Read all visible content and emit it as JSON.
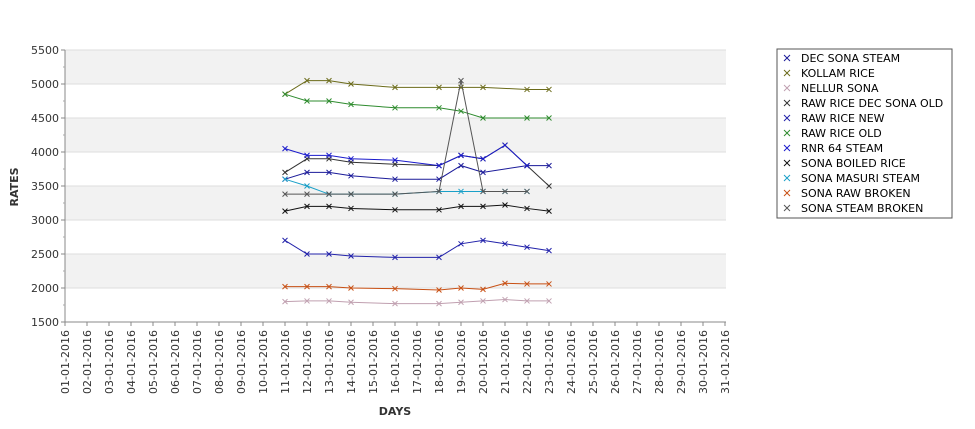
{
  "chart_data": {
    "type": "line",
    "xlabel": "DAYS",
    "ylabel": "RATES",
    "ylim": [
      1500,
      5500
    ],
    "yticks": [
      1500,
      2000,
      2500,
      3000,
      3500,
      4000,
      4500,
      5000,
      5500
    ],
    "grid": true,
    "legend_position": "right",
    "x": [
      "01-01-2016",
      "02-01-2016",
      "03-01-2016",
      "04-01-2016",
      "05-01-2016",
      "06-01-2016",
      "07-01-2016",
      "08-01-2016",
      "09-01-2016",
      "10-01-2016",
      "11-01-2016",
      "12-01-2016",
      "13-01-2016",
      "14-01-2016",
      "15-01-2016",
      "16-01-2016",
      "17-01-2016",
      "18-01-2016",
      "19-01-2016",
      "20-01-2016",
      "21-01-2016",
      "22-01-2016",
      "23-01-2016",
      "24-01-2016",
      "25-01-2016",
      "26-01-2016",
      "27-01-2016",
      "28-01-2016",
      "29-01-2016",
      "30-01-2016",
      "31-01-2016"
    ],
    "series": [
      {
        "name": "DEC SONA STEAM",
        "color": "#1a1a99",
        "points": [
          [
            "11-01-2016",
            3600
          ],
          [
            "12-01-2016",
            3700
          ],
          [
            "13-01-2016",
            3700
          ],
          [
            "14-01-2016",
            3650
          ],
          [
            "16-01-2016",
            3600
          ],
          [
            "18-01-2016",
            3600
          ],
          [
            "19-01-2016",
            3800
          ],
          [
            "20-01-2016",
            3700
          ],
          [
            "22-01-2016",
            3800
          ],
          [
            "23-01-2016",
            3800
          ]
        ]
      },
      {
        "name": "KOLLAM RICE",
        "color": "#6b6b1a",
        "points": [
          [
            "11-01-2016",
            4850
          ],
          [
            "12-01-2016",
            5050
          ],
          [
            "13-01-2016",
            5050
          ],
          [
            "14-01-2016",
            5000
          ],
          [
            "16-01-2016",
            4950
          ],
          [
            "18-01-2016",
            4950
          ],
          [
            "19-01-2016",
            4950
          ],
          [
            "20-01-2016",
            4950
          ],
          [
            "22-01-2016",
            4920
          ],
          [
            "23-01-2016",
            4920
          ]
        ]
      },
      {
        "name": "NELLUR SONA",
        "color": "#c0a0b0",
        "points": [
          [
            "11-01-2016",
            1800
          ],
          [
            "12-01-2016",
            1810
          ],
          [
            "13-01-2016",
            1810
          ],
          [
            "14-01-2016",
            1790
          ],
          [
            "16-01-2016",
            1770
          ],
          [
            "18-01-2016",
            1770
          ],
          [
            "19-01-2016",
            1790
          ],
          [
            "20-01-2016",
            1810
          ],
          [
            "21-01-2016",
            1830
          ],
          [
            "22-01-2016",
            1810
          ],
          [
            "23-01-2016",
            1810
          ]
        ]
      },
      {
        "name": "RAW RICE DEC SONA OLD",
        "color": "#333333",
        "points": [
          [
            "11-01-2016",
            3700
          ],
          [
            "12-01-2016",
            3900
          ],
          [
            "13-01-2016",
            3900
          ],
          [
            "14-01-2016",
            3850
          ],
          [
            "16-01-2016",
            3820
          ],
          [
            "18-01-2016",
            3800
          ],
          [
            "19-01-2016",
            3950
          ],
          [
            "20-01-2016",
            3900
          ],
          [
            "21-01-2016",
            4100
          ],
          [
            "22-01-2016",
            3800
          ],
          [
            "23-01-2016",
            3500
          ]
        ]
      },
      {
        "name": "RAW RICE NEW",
        "color": "#2222aa",
        "points": [
          [
            "11-01-2016",
            2700
          ],
          [
            "12-01-2016",
            2500
          ],
          [
            "13-01-2016",
            2500
          ],
          [
            "14-01-2016",
            2470
          ],
          [
            "16-01-2016",
            2450
          ],
          [
            "18-01-2016",
            2450
          ],
          [
            "19-01-2016",
            2650
          ],
          [
            "20-01-2016",
            2700
          ],
          [
            "21-01-2016",
            2650
          ],
          [
            "22-01-2016",
            2600
          ],
          [
            "23-01-2016",
            2550
          ]
        ]
      },
      {
        "name": "RAW RICE OLD",
        "color": "#2e8b2e",
        "points": [
          [
            "11-01-2016",
            4850
          ],
          [
            "12-01-2016",
            4750
          ],
          [
            "13-01-2016",
            4750
          ],
          [
            "14-01-2016",
            4700
          ],
          [
            "16-01-2016",
            4650
          ],
          [
            "18-01-2016",
            4650
          ],
          [
            "19-01-2016",
            4600
          ],
          [
            "20-01-2016",
            4500
          ],
          [
            "22-01-2016",
            4500
          ],
          [
            "23-01-2016",
            4500
          ]
        ]
      },
      {
        "name": "RNR 64 STEAM",
        "color": "#1a1acc",
        "points": [
          [
            "11-01-2016",
            4050
          ],
          [
            "12-01-2016",
            3950
          ],
          [
            "13-01-2016",
            3950
          ],
          [
            "14-01-2016",
            3900
          ],
          [
            "16-01-2016",
            3880
          ],
          [
            "18-01-2016",
            3800
          ],
          [
            "19-01-2016",
            3950
          ],
          [
            "20-01-2016",
            3900
          ],
          [
            "21-01-2016",
            4100
          ],
          [
            "22-01-2016",
            3800
          ]
        ]
      },
      {
        "name": "SONA BOILED RICE",
        "color": "#111111",
        "points": [
          [
            "11-01-2016",
            3130
          ],
          [
            "12-01-2016",
            3200
          ],
          [
            "13-01-2016",
            3200
          ],
          [
            "14-01-2016",
            3170
          ],
          [
            "16-01-2016",
            3150
          ],
          [
            "18-01-2016",
            3150
          ],
          [
            "19-01-2016",
            3200
          ],
          [
            "20-01-2016",
            3200
          ],
          [
            "21-01-2016",
            3220
          ],
          [
            "22-01-2016",
            3170
          ],
          [
            "23-01-2016",
            3130
          ]
        ]
      },
      {
        "name": "SONA MASURI STEAM",
        "color": "#1aa0c8",
        "points": [
          [
            "11-01-2016",
            3600
          ],
          [
            "12-01-2016",
            3500
          ],
          [
            "13-01-2016",
            3380
          ],
          [
            "14-01-2016",
            3380
          ],
          [
            "16-01-2016",
            3380
          ],
          [
            "18-01-2016",
            3420
          ],
          [
            "19-01-2016",
            3420
          ],
          [
            "20-01-2016",
            3420
          ],
          [
            "21-01-2016",
            3420
          ],
          [
            "22-01-2016",
            3420
          ]
        ]
      },
      {
        "name": "SONA RAW BROKEN",
        "color": "#c85014",
        "points": [
          [
            "11-01-2016",
            2020
          ],
          [
            "12-01-2016",
            2020
          ],
          [
            "13-01-2016",
            2020
          ],
          [
            "14-01-2016",
            2000
          ],
          [
            "16-01-2016",
            1990
          ],
          [
            "18-01-2016",
            1970
          ],
          [
            "19-01-2016",
            2000
          ],
          [
            "20-01-2016",
            1980
          ],
          [
            "21-01-2016",
            2070
          ],
          [
            "22-01-2016",
            2060
          ],
          [
            "23-01-2016",
            2060
          ]
        ]
      },
      {
        "name": "SONA STEAM BROKEN",
        "color": "#555555",
        "points": [
          [
            "11-01-2016",
            3380
          ],
          [
            "12-01-2016",
            3380
          ],
          [
            "13-01-2016",
            3380
          ],
          [
            "14-01-2016",
            3380
          ],
          [
            "16-01-2016",
            3380
          ],
          [
            "18-01-2016",
            3420
          ],
          [
            "19-01-2016",
            5050
          ],
          [
            "20-01-2016",
            3420
          ],
          [
            "21-01-2016",
            3420
          ],
          [
            "22-01-2016",
            3420
          ]
        ]
      }
    ]
  }
}
